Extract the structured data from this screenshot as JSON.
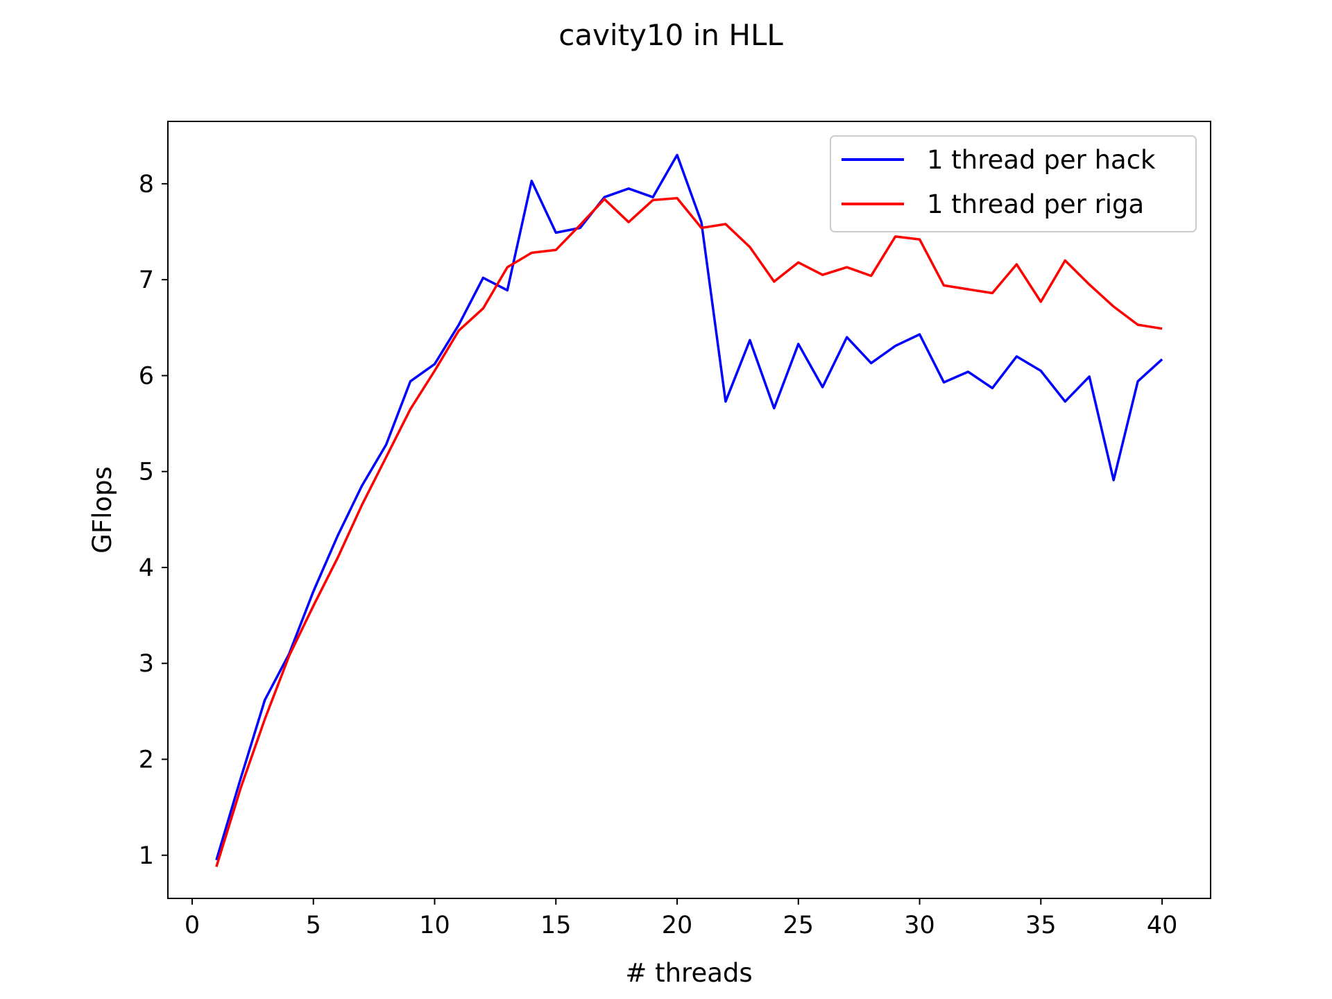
{
  "chart_data": {
    "type": "line",
    "title": "cavity10 in HLL",
    "xlabel": "# threads",
    "ylabel": "GFlops",
    "xlim": [
      -1,
      42
    ],
    "ylim": [
      0.55,
      8.65
    ],
    "xticks": [
      0,
      5,
      10,
      15,
      20,
      25,
      30,
      35,
      40
    ],
    "yticks": [
      1,
      2,
      3,
      4,
      5,
      6,
      7,
      8
    ],
    "grid": false,
    "legend_position": "top-right",
    "x": [
      1,
      2,
      3,
      4,
      5,
      6,
      7,
      8,
      9,
      10,
      11,
      12,
      13,
      14,
      15,
      16,
      17,
      18,
      19,
      20,
      21,
      22,
      23,
      24,
      25,
      26,
      27,
      28,
      29,
      30,
      31,
      32,
      33,
      34,
      35,
      36,
      37,
      38,
      39,
      40
    ],
    "series": [
      {
        "name": "1 thread per hack",
        "color": "#0000ff",
        "values": [
          0.95,
          1.8,
          2.62,
          3.1,
          3.75,
          4.33,
          4.85,
          5.28,
          5.94,
          6.12,
          6.53,
          7.02,
          6.89,
          8.03,
          7.49,
          7.54,
          7.86,
          7.95,
          7.86,
          8.3,
          7.6,
          5.73,
          6.37,
          5.66,
          6.33,
          5.88,
          6.4,
          6.13,
          6.31,
          6.43,
          5.93,
          6.04,
          5.87,
          6.2,
          6.05,
          5.73,
          5.99,
          4.91,
          5.94,
          6.17
        ]
      },
      {
        "name": "1 thread per riga",
        "color": "#ff0000",
        "values": [
          0.88,
          1.7,
          2.42,
          3.08,
          3.6,
          4.1,
          4.65,
          5.15,
          5.65,
          6.05,
          6.47,
          6.7,
          7.13,
          7.28,
          7.31,
          7.57,
          7.84,
          7.6,
          7.83,
          7.85,
          7.54,
          7.58,
          7.34,
          6.98,
          7.18,
          7.05,
          7.13,
          7.04,
          7.45,
          7.42,
          6.94,
          6.9,
          6.86,
          7.16,
          6.77,
          7.2,
          6.95,
          6.72,
          6.53,
          6.49
        ]
      }
    ]
  }
}
